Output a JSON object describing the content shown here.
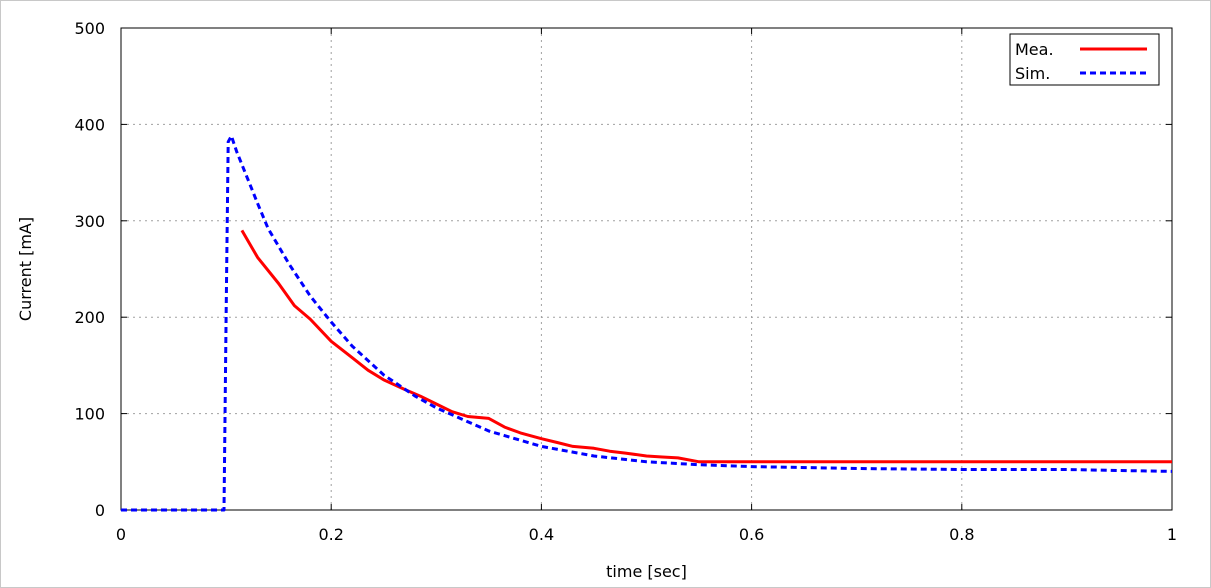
{
  "chart_data": {
    "type": "line",
    "title": "",
    "xlabel": "time [sec]",
    "ylabel": "Current [mA]",
    "xlim": [
      0,
      1
    ],
    "ylim": [
      0,
      500
    ],
    "x_ticks": [
      "0",
      "0.2",
      "0.4",
      "0.6",
      "0.8",
      "1"
    ],
    "y_ticks": [
      "0",
      "100",
      "200",
      "300",
      "400",
      "500"
    ],
    "grid": true,
    "legend_position": "top-right",
    "series": [
      {
        "name": "Mea.",
        "color": "#ff0000",
        "style": "solid",
        "x": [
          0.115,
          0.13,
          0.15,
          0.165,
          0.18,
          0.2,
          0.22,
          0.235,
          0.25,
          0.27,
          0.285,
          0.3,
          0.315,
          0.33,
          0.35,
          0.365,
          0.38,
          0.4,
          0.415,
          0.43,
          0.45,
          0.465,
          0.48,
          0.5,
          0.515,
          0.53,
          0.55,
          0.6,
          0.7,
          0.8,
          0.9,
          1.0
        ],
        "y": [
          290,
          262,
          235,
          212,
          198,
          175,
          158,
          145,
          135,
          125,
          118,
          110,
          102,
          97,
          95,
          86,
          80,
          74,
          70,
          66,
          64,
          61,
          59,
          56,
          55,
          54,
          50,
          50,
          50,
          50,
          50,
          50
        ]
      },
      {
        "name": "Sim.",
        "color": "#0000ff",
        "style": "dashed",
        "x": [
          0,
          0.098,
          0.1,
          0.102,
          0.105,
          0.11,
          0.12,
          0.13,
          0.14,
          0.16,
          0.18,
          0.2,
          0.22,
          0.25,
          0.28,
          0.3,
          0.35,
          0.4,
          0.45,
          0.5,
          0.55,
          0.6,
          0.7,
          0.8,
          0.9,
          0.95,
          1.0
        ],
        "y": [
          0,
          0,
          200,
          382,
          388,
          372,
          345,
          318,
          292,
          255,
          222,
          195,
          170,
          140,
          118,
          106,
          82,
          66,
          56,
          50,
          47,
          45,
          43,
          42,
          42,
          41,
          40
        ]
      }
    ]
  }
}
